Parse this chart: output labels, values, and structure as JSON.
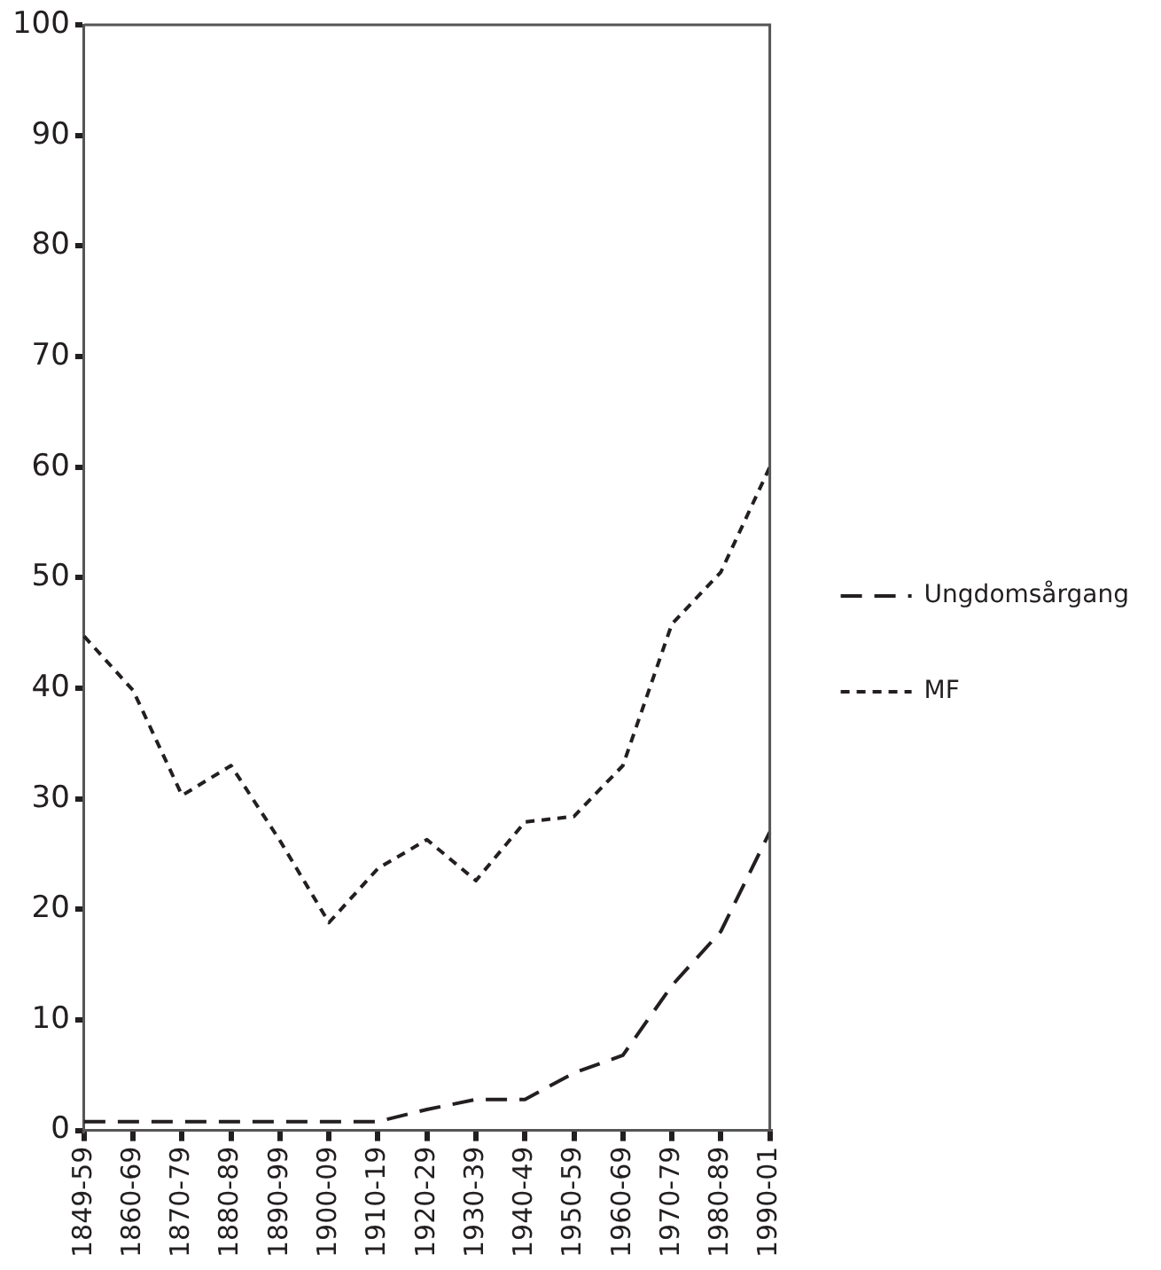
{
  "chart_data": {
    "type": "line",
    "categories": [
      "1849-59",
      "1860-69",
      "1870-79",
      "1880-89",
      "1890-99",
      "1900-09",
      "1910-19",
      "1920-29",
      "1930-39",
      "1940-49",
      "1950-59",
      "1960-69",
      "1970-79",
      "1980-89",
      "1990-01"
    ],
    "series": [
      {
        "name": "Ungdomsårgang",
        "color": "#231f20",
        "line_style": "dashed",
        "values": [
          0.8,
          0.8,
          0.8,
          0.8,
          0.8,
          0.8,
          0.8,
          1.9,
          2.8,
          2.8,
          5.2,
          6.8,
          13.1,
          18,
          27
        ]
      },
      {
        "name": "MF",
        "color": "#231f20",
        "line_style": "dotted",
        "values": [
          44.7,
          39.8,
          30.3,
          33,
          26.2,
          18.8,
          23.7,
          26.3,
          22.6,
          27.9,
          28.4,
          33,
          45.8,
          50.5,
          60
        ]
      }
    ],
    "ylim": [
      0,
      100
    ],
    "yticks": [
      0,
      10,
      20,
      30,
      40,
      50,
      60,
      70,
      80,
      90,
      100
    ],
    "grid": false,
    "legend": "right",
    "marker": "none"
  }
}
